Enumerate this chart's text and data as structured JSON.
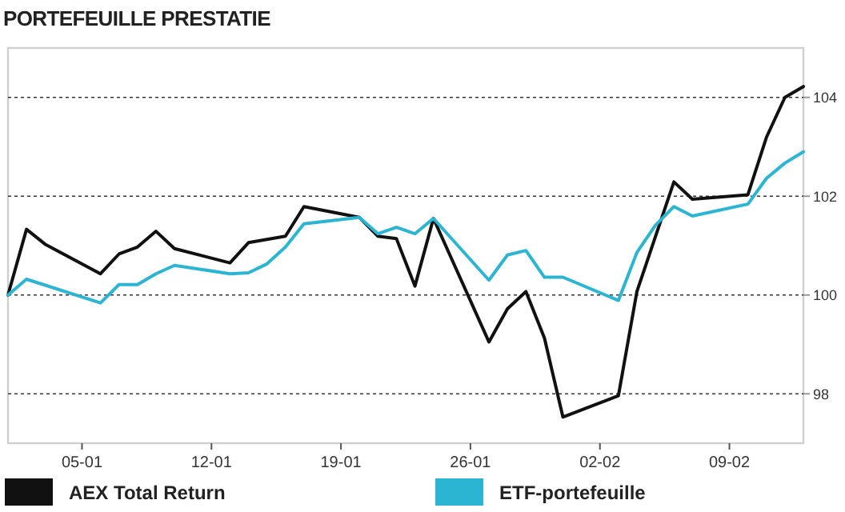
{
  "chart_data": {
    "type": "line",
    "title": "PORTEFEUILLE PRESTATIE",
    "xlim": [
      "--01-01",
      "--02-13"
    ],
    "xticks": [
      {
        "value": "--01-05",
        "label": "05-01"
      },
      {
        "value": "--01-12",
        "label": "12-01"
      },
      {
        "value": "--01-19",
        "label": "19-01"
      },
      {
        "value": "--01-26",
        "label": "26-01"
      },
      {
        "value": "--02-02",
        "label": "02-02"
      },
      {
        "value": "--02-09",
        "label": "09-02"
      }
    ],
    "ylim": [
      97,
      105
    ],
    "yticks": [
      98,
      100,
      102,
      104
    ],
    "grid": "y",
    "legend": "bottom",
    "line_style": "solid",
    "marker": "none",
    "series": [
      {
        "name": "AEX Total Return",
        "color": "#111111",
        "x": [
          "--01-01",
          "--01-02",
          "--01-03",
          "--01-06",
          "--01-07",
          "--01-08",
          "--01-09",
          "--01-10",
          "--01-13",
          "--01-14",
          "--01-16",
          "--01-17",
          "--01-20",
          "--01-21",
          "--01-22",
          "--01-23",
          "--01-24",
          "--01-27",
          "--01-28",
          "--01-29",
          "--01-30",
          "--01-31",
          "--02-03",
          "--02-04",
          "--02-06",
          "--02-07",
          "--02-10",
          "--02-11",
          "--02-12",
          "--02-13"
        ],
        "values": [
          100,
          101.33,
          101.03,
          100.43,
          100.83,
          100.97,
          101.29,
          100.94,
          100.65,
          101.06,
          101.19,
          101.79,
          101.57,
          101.19,
          101.14,
          100.18,
          101.55,
          99.05,
          99.72,
          100.07,
          99.13,
          97.53,
          97.96,
          100.07,
          102.29,
          101.94,
          102.03,
          103.19,
          104.0,
          104.22
        ]
      },
      {
        "name": "ETF-portefeuille",
        "color": "#2bb5d3",
        "x": [
          "--01-01",
          "--01-02",
          "--01-06",
          "--01-07",
          "--01-08",
          "--01-09",
          "--01-10",
          "--01-13",
          "--01-14",
          "--01-15",
          "--01-16",
          "--01-17",
          "--01-20",
          "--01-21",
          "--01-22",
          "--01-23",
          "--01-24",
          "--01-27",
          "--01-28",
          "--01-29",
          "--01-30",
          "--01-31",
          "--02-03",
          "--02-04",
          "--02-05",
          "--02-06",
          "--02-07",
          "--02-10",
          "--02-11",
          "--02-12",
          "--02-13"
        ],
        "values": [
          100,
          100.32,
          99.84,
          100.21,
          100.21,
          100.43,
          100.6,
          100.43,
          100.45,
          100.63,
          100.97,
          101.44,
          101.57,
          101.24,
          101.37,
          101.24,
          101.55,
          100.3,
          100.81,
          100.9,
          100.36,
          100.36,
          99.89,
          100.86,
          101.41,
          101.79,
          101.6,
          101.84,
          102.36,
          102.67,
          102.9
        ]
      }
    ]
  }
}
